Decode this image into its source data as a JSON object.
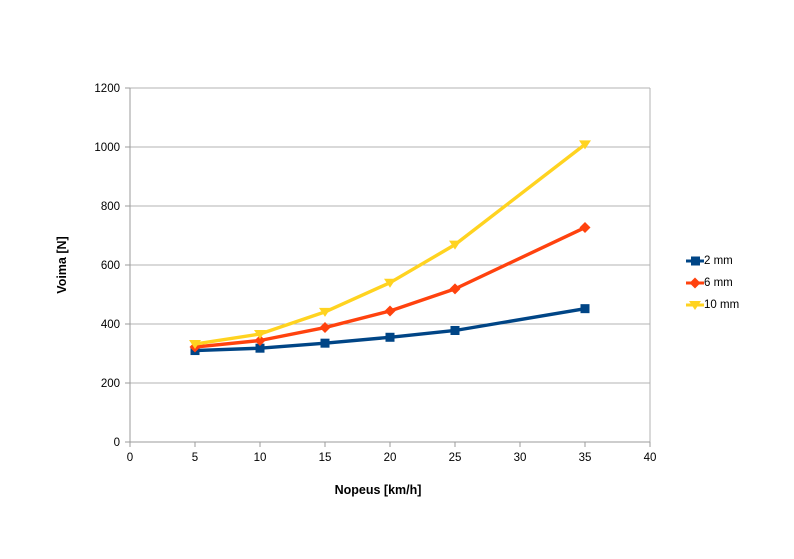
{
  "chart_data": {
    "type": "line",
    "title": "",
    "xlabel": "Nopeus [km/h]",
    "ylabel": "Voima [N]",
    "xlim": [
      0,
      40
    ],
    "ylim": [
      0,
      1200
    ],
    "xticks": [
      0,
      5,
      10,
      15,
      20,
      25,
      30,
      35,
      40
    ],
    "yticks": [
      0,
      200,
      400,
      600,
      800,
      1000,
      1200
    ],
    "grid": "horizontal",
    "legend_position": "right",
    "x": [
      5,
      10,
      15,
      20,
      25,
      35
    ],
    "series": [
      {
        "name": "2 mm",
        "color": "#004586",
        "marker": "square",
        "values": [
          310,
          318,
          335,
          355,
          378,
          452
        ]
      },
      {
        "name": "6 mm",
        "color": "#ff420e",
        "marker": "diamond",
        "values": [
          322,
          344,
          388,
          444,
          519,
          727
        ]
      },
      {
        "name": "10 mm",
        "color": "#ffd320",
        "marker": "triangle-down",
        "values": [
          332,
          366,
          441,
          540,
          669,
          1009
        ]
      }
    ],
    "colors": {
      "background": "#ffffff",
      "gridline": "#b3b3b3",
      "axis": "#9b9b9b",
      "text": "#000000"
    }
  }
}
